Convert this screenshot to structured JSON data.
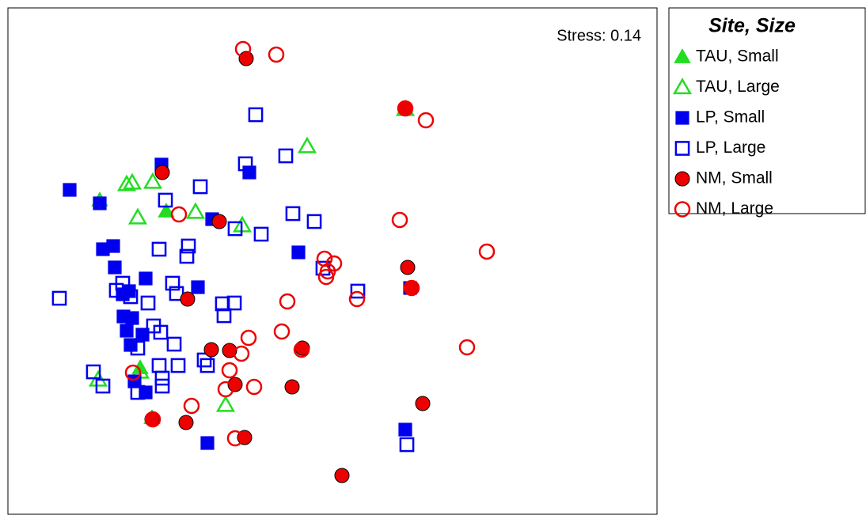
{
  "chart_data": {
    "type": "scatter",
    "annotation": "Stress: 0.14",
    "legend_title": "Site, Size",
    "xlim": [
      0,
      820
    ],
    "ylim": [
      0,
      640
    ],
    "series": [
      {
        "name": "TAU, Small",
        "color": "#22dd22",
        "marker": "triangle",
        "filled": true,
        "x": [
          116,
          200,
          182,
          167
        ],
        "values": [
          397,
          383,
          122,
          185
        ]
      },
      {
        "name": "TAU, Large",
        "color": "#22dd22",
        "marker": "triangle",
        "filled": false,
        "x": [
          502,
          378,
          150,
          157,
          183,
          164,
          237,
          296,
          275,
          114,
          167
        ],
        "values": [
          512,
          465,
          417,
          419,
          420,
          375,
          382,
          365,
          138,
          170,
          180
        ]
      },
      {
        "name": "LP, Small",
        "color": "#0000ee",
        "marker": "square",
        "filled": true,
        "x": [
          194,
          305,
          78,
          116,
          258,
          120,
          133,
          135,
          174,
          240,
          145,
          153,
          146,
          157,
          150,
          170,
          155,
          367,
          174,
          252,
          502,
          508,
          160
        ],
        "values": [
          442,
          432,
          410,
          393,
          373,
          335,
          339,
          312,
          298,
          287,
          278,
          282,
          250,
          248,
          232,
          227,
          214,
          331,
          154,
          90,
          107,
          286,
          168
        ]
      },
      {
        "name": "LP, Large",
        "color": "#0000ee",
        "marker": "square",
        "filled": false,
        "x": [
          313,
          300,
          351,
          243,
          199,
          360,
          387,
          287,
          320,
          191,
          228,
          226,
          208,
          213,
          137,
          145,
          155,
          177,
          65,
          271,
          286,
          273,
          184,
          193,
          210,
          164,
          398,
          442,
          215,
          191,
          248,
          252,
          195,
          195,
          108,
          120,
          164,
          504
        ],
        "values": [
          505,
          443,
          453,
          414,
          397,
          380,
          370,
          361,
          354,
          335,
          339,
          326,
          292,
          279,
          283,
          292,
          275,
          267,
          273,
          266,
          267,
          251,
          238,
          230,
          215,
          210,
          311,
          282,
          188,
          188,
          195,
          188,
          172,
          162,
          180,
          162,
          154,
          88
        ]
      },
      {
        "name": "NM, Small",
        "color": "#ee0000",
        "marker": "circle",
        "filled": true,
        "x": [
          301,
          195,
          267,
          227,
          257,
          280,
          372,
          287,
          359,
          505,
          524,
          225,
          299,
          422,
          509,
          182,
          502
        ],
        "values": [
          576,
          432,
          370,
          272,
          208,
          207,
          210,
          164,
          161,
          312,
          140,
          116,
          97,
          49,
          286,
          120,
          513
        ]
      },
      {
        "name": "NM, Large",
        "color": "#ee0000",
        "marker": "circle",
        "filled": false,
        "x": [
          297,
          339,
          528,
          502,
          216,
          495,
          605,
          400,
          412,
          404,
          402,
          441,
          353,
          346,
          304,
          295,
          371,
          580,
          280,
          158,
          311,
          275,
          232,
          287,
          183,
          510
        ],
        "values": [
          588,
          581,
          498,
          513,
          379,
          372,
          332,
          323,
          317,
          307,
          300,
          272,
          269,
          231,
          223,
          203,
          208,
          211,
          182,
          179,
          161,
          158,
          137,
          96,
          120,
          286
        ]
      }
    ]
  }
}
